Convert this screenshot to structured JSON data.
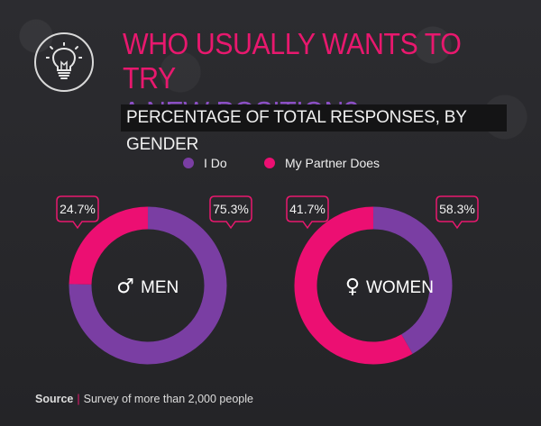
{
  "title": {
    "line1": "WHO USUALLY WANTS TO TRY",
    "line2": "A NEW POSITION?"
  },
  "subtitle": "PERCENTAGE OF TOTAL RESPONSES, BY GENDER",
  "icon": "lightbulb-icon",
  "colors": {
    "i_do": "#7a3ea3",
    "my_partner_does": "#ec0f72",
    "background": "#2a2a2d"
  },
  "legend": [
    {
      "label": "I Do",
      "color": "#7a3ea3"
    },
    {
      "label": "My Partner Does",
      "color": "#ec0f72"
    }
  ],
  "chart_data": [
    {
      "type": "pie",
      "title": "MEN",
      "symbol": "♂",
      "donut": true,
      "slices": [
        {
          "label": "I Do",
          "value": 75.3,
          "display": "75.3%"
        },
        {
          "label": "My Partner Does",
          "value": 24.7,
          "display": "24.7%"
        }
      ]
    },
    {
      "type": "pie",
      "title": "WOMEN",
      "symbol": "♀",
      "donut": true,
      "slices": [
        {
          "label": "I Do",
          "value": 41.7,
          "display": "41.7%"
        },
        {
          "label": "My Partner Does",
          "value": 58.3,
          "display": "58.3%"
        }
      ]
    }
  ],
  "source": {
    "label": "Source",
    "separator": "|",
    "text": "Survey of more than 2,000 people"
  }
}
